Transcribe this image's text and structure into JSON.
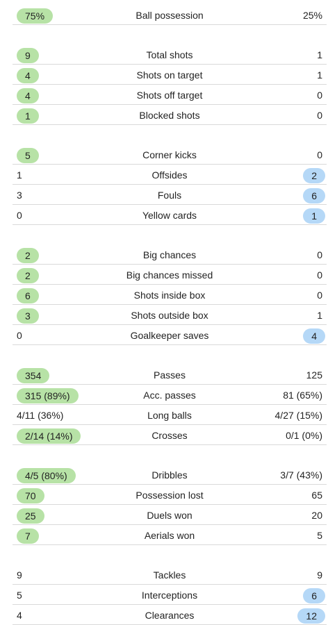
{
  "groups": [
    [
      {
        "label": "Ball possession",
        "home": "75%",
        "away": "25%",
        "leader": "home"
      }
    ],
    [
      {
        "label": "Total shots",
        "home": "9",
        "away": "1",
        "leader": "home"
      },
      {
        "label": "Shots on target",
        "home": "4",
        "away": "1",
        "leader": "home"
      },
      {
        "label": "Shots off target",
        "home": "4",
        "away": "0",
        "leader": "home"
      },
      {
        "label": "Blocked shots",
        "home": "1",
        "away": "0",
        "leader": "home"
      }
    ],
    [
      {
        "label": "Corner kicks",
        "home": "5",
        "away": "0",
        "leader": "home"
      },
      {
        "label": "Offsides",
        "home": "1",
        "away": "2",
        "leader": "away"
      },
      {
        "label": "Fouls",
        "home": "3",
        "away": "6",
        "leader": "away"
      },
      {
        "label": "Yellow cards",
        "home": "0",
        "away": "1",
        "leader": "away"
      }
    ],
    [
      {
        "label": "Big chances",
        "home": "2",
        "away": "0",
        "leader": "home"
      },
      {
        "label": "Big chances missed",
        "home": "2",
        "away": "0",
        "leader": "home"
      },
      {
        "label": "Shots inside box",
        "home": "6",
        "away": "0",
        "leader": "home"
      },
      {
        "label": "Shots outside box",
        "home": "3",
        "away": "1",
        "leader": "home"
      },
      {
        "label": "Goalkeeper saves",
        "home": "0",
        "away": "4",
        "leader": "away"
      }
    ],
    [
      {
        "label": "Passes",
        "home": "354",
        "away": "125",
        "leader": "home"
      },
      {
        "label": "Acc. passes",
        "home": "315 (89%)",
        "away": "81 (65%)",
        "leader": "home"
      },
      {
        "label": "Long balls",
        "home": "4/11 (36%)",
        "away": "4/27 (15%)",
        "leader": "none"
      },
      {
        "label": "Crosses",
        "home": "2/14 (14%)",
        "away": "0/1 (0%)",
        "leader": "home"
      }
    ],
    [
      {
        "label": "Dribbles",
        "home": "4/5 (80%)",
        "away": "3/7 (43%)",
        "leader": "home"
      },
      {
        "label": "Possession lost",
        "home": "70",
        "away": "65",
        "leader": "home"
      },
      {
        "label": "Duels won",
        "home": "25",
        "away": "20",
        "leader": "home"
      },
      {
        "label": "Aerials won",
        "home": "7",
        "away": "5",
        "leader": "home"
      }
    ],
    [
      {
        "label": "Tackles",
        "home": "9",
        "away": "9",
        "leader": "none"
      },
      {
        "label": "Interceptions",
        "home": "5",
        "away": "6",
        "leader": "away"
      },
      {
        "label": "Clearances",
        "home": "4",
        "away": "12",
        "leader": "away"
      }
    ]
  ],
  "colors": {
    "home_highlight": "#b7e2a6",
    "away_highlight": "#b5d8f7",
    "divider": "#d9d9d9"
  }
}
